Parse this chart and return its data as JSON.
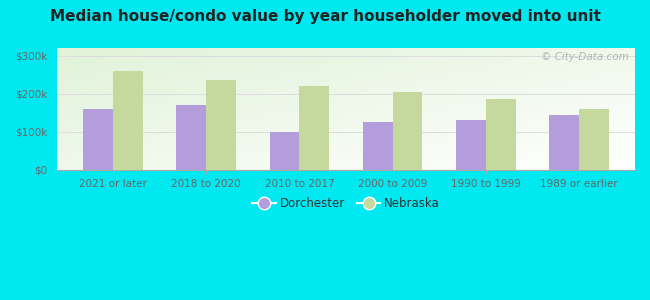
{
  "title": "Median house/condo value by year householder moved into unit",
  "categories": [
    "2021 or later",
    "2018 to 2020",
    "2010 to 2017",
    "2000 to 2009",
    "1990 to 1999",
    "1989 or earlier"
  ],
  "dorchester": [
    160000,
    170000,
    100000,
    125000,
    130000,
    145000
  ],
  "nebraska": [
    260000,
    235000,
    220000,
    205000,
    185000,
    160000
  ],
  "dorchester_color": "#b39ddb",
  "nebraska_color": "#c5d89d",
  "background_outer": "#00e8f0",
  "ylabel_ticks": [
    0,
    100000,
    200000,
    300000
  ],
  "ylabel_labels": [
    "$0",
    "$100k",
    "$200k",
    "$300k"
  ],
  "ylim": [
    0,
    320000
  ],
  "bar_width": 0.32,
  "legend_labels": [
    "Dorchester",
    "Nebraska"
  ],
  "watermark": "© City-Data.com",
  "title_fontsize": 11,
  "tick_fontsize": 7.5,
  "legend_fontsize": 8.5
}
